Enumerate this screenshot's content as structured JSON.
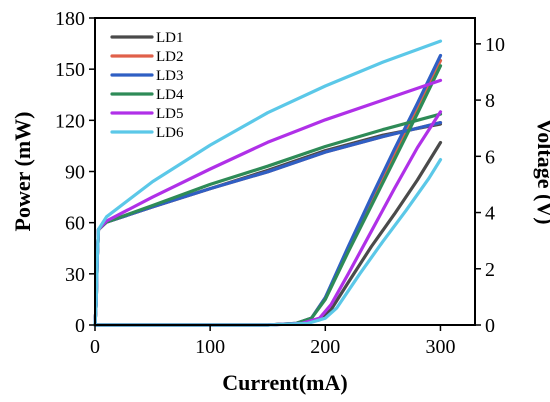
{
  "chart_data": {
    "type": "line",
    "xlabel": "Current(mA)",
    "ylabel": "Power (mW)",
    "y2label": "Voltage (V)",
    "xlim": [
      0,
      330
    ],
    "ylim": [
      0,
      180
    ],
    "y2lim": [
      0,
      10.92
    ],
    "xticks": [
      0,
      100,
      200,
      300
    ],
    "yticks": [
      0,
      30,
      60,
      90,
      120,
      150,
      180
    ],
    "y2ticks": [
      0,
      2,
      4,
      6,
      8,
      10
    ],
    "legend_position": "top-left",
    "series": [
      {
        "name": "LD1",
        "color": "#4a4a4a",
        "power": [
          [
            0,
            0
          ],
          [
            150,
            0
          ],
          [
            180,
            1
          ],
          [
            195,
            3
          ],
          [
            205,
            9
          ],
          [
            220,
            25
          ],
          [
            240,
            46
          ],
          [
            260,
            65
          ],
          [
            280,
            85
          ],
          [
            300,
            107
          ]
        ],
        "voltage": [
          [
            0,
            0
          ],
          [
            1,
            0.8
          ],
          [
            2,
            2.4
          ],
          [
            3,
            3.4
          ],
          [
            10,
            3.66
          ],
          [
            50,
            4.2
          ],
          [
            100,
            4.85
          ],
          [
            150,
            5.5
          ],
          [
            200,
            6.2
          ],
          [
            250,
            6.75
          ],
          [
            300,
            7.15
          ]
        ]
      },
      {
        "name": "LD2",
        "color": "#e0604a",
        "power": [
          [
            0,
            0
          ],
          [
            150,
            0
          ],
          [
            175,
            1
          ],
          [
            188,
            4
          ],
          [
            200,
            16
          ],
          [
            220,
            44
          ],
          [
            240,
            72
          ],
          [
            260,
            100
          ],
          [
            280,
            127
          ],
          [
            300,
            155
          ]
        ],
        "voltage": [
          [
            0,
            0
          ],
          [
            1,
            0.8
          ],
          [
            2,
            2.4
          ],
          [
            3,
            3.4
          ],
          [
            10,
            3.66
          ],
          [
            50,
            4.2
          ],
          [
            100,
            4.85
          ],
          [
            150,
            5.45
          ],
          [
            200,
            6.15
          ],
          [
            250,
            6.7
          ],
          [
            300,
            7.2
          ]
        ]
      },
      {
        "name": "LD3",
        "color": "#2f5fc4",
        "power": [
          [
            0,
            0
          ],
          [
            150,
            0
          ],
          [
            175,
            1
          ],
          [
            188,
            4
          ],
          [
            200,
            16
          ],
          [
            220,
            46
          ],
          [
            240,
            75
          ],
          [
            260,
            103
          ],
          [
            280,
            130
          ],
          [
            300,
            158
          ]
        ],
        "voltage": [
          [
            0,
            0
          ],
          [
            1,
            0.8
          ],
          [
            2,
            2.4
          ],
          [
            3,
            3.4
          ],
          [
            10,
            3.66
          ],
          [
            50,
            4.2
          ],
          [
            100,
            4.85
          ],
          [
            150,
            5.45
          ],
          [
            200,
            6.15
          ],
          [
            250,
            6.7
          ],
          [
            300,
            7.2
          ]
        ]
      },
      {
        "name": "LD4",
        "color": "#2e8b57",
        "power": [
          [
            0,
            0
          ],
          [
            150,
            0
          ],
          [
            175,
            1
          ],
          [
            188,
            4
          ],
          [
            200,
            15
          ],
          [
            220,
            43
          ],
          [
            240,
            70
          ],
          [
            260,
            97
          ],
          [
            280,
            124
          ],
          [
            300,
            152
          ]
        ],
        "voltage": [
          [
            0,
            0
          ],
          [
            1,
            0.8
          ],
          [
            2,
            2.4
          ],
          [
            3,
            3.4
          ],
          [
            10,
            3.66
          ],
          [
            50,
            4.25
          ],
          [
            100,
            5.0
          ],
          [
            150,
            5.65
          ],
          [
            200,
            6.35
          ],
          [
            250,
            6.95
          ],
          [
            300,
            7.5
          ]
        ]
      },
      {
        "name": "LD5",
        "color": "#b030e8",
        "power": [
          [
            0,
            0
          ],
          [
            150,
            0
          ],
          [
            180,
            1
          ],
          [
            195,
            4
          ],
          [
            205,
            12
          ],
          [
            220,
            30
          ],
          [
            240,
            55
          ],
          [
            260,
            80
          ],
          [
            280,
            104
          ],
          [
            300,
            125
          ]
        ],
        "voltage": [
          [
            0,
            0
          ],
          [
            1,
            0.8
          ],
          [
            2,
            2.4
          ],
          [
            3,
            3.4
          ],
          [
            10,
            3.7
          ],
          [
            50,
            4.55
          ],
          [
            100,
            5.55
          ],
          [
            150,
            6.5
          ],
          [
            200,
            7.3
          ],
          [
            250,
            8.0
          ],
          [
            300,
            8.7
          ]
        ]
      },
      {
        "name": "LD6",
        "color": "#5bc8e8",
        "power": [
          [
            0,
            0
          ],
          [
            150,
            0
          ],
          [
            185,
            1
          ],
          [
            200,
            4
          ],
          [
            210,
            10
          ],
          [
            230,
            30
          ],
          [
            250,
            49
          ],
          [
            270,
            67
          ],
          [
            290,
            86
          ],
          [
            300,
            97
          ]
        ],
        "voltage": [
          [
            0,
            0
          ],
          [
            1,
            0.8
          ],
          [
            2,
            2.4
          ],
          [
            3,
            3.4
          ],
          [
            10,
            3.85
          ],
          [
            50,
            5.1
          ],
          [
            100,
            6.4
          ],
          [
            150,
            7.55
          ],
          [
            200,
            8.5
          ],
          [
            250,
            9.35
          ],
          [
            300,
            10.1
          ]
        ]
      }
    ]
  }
}
